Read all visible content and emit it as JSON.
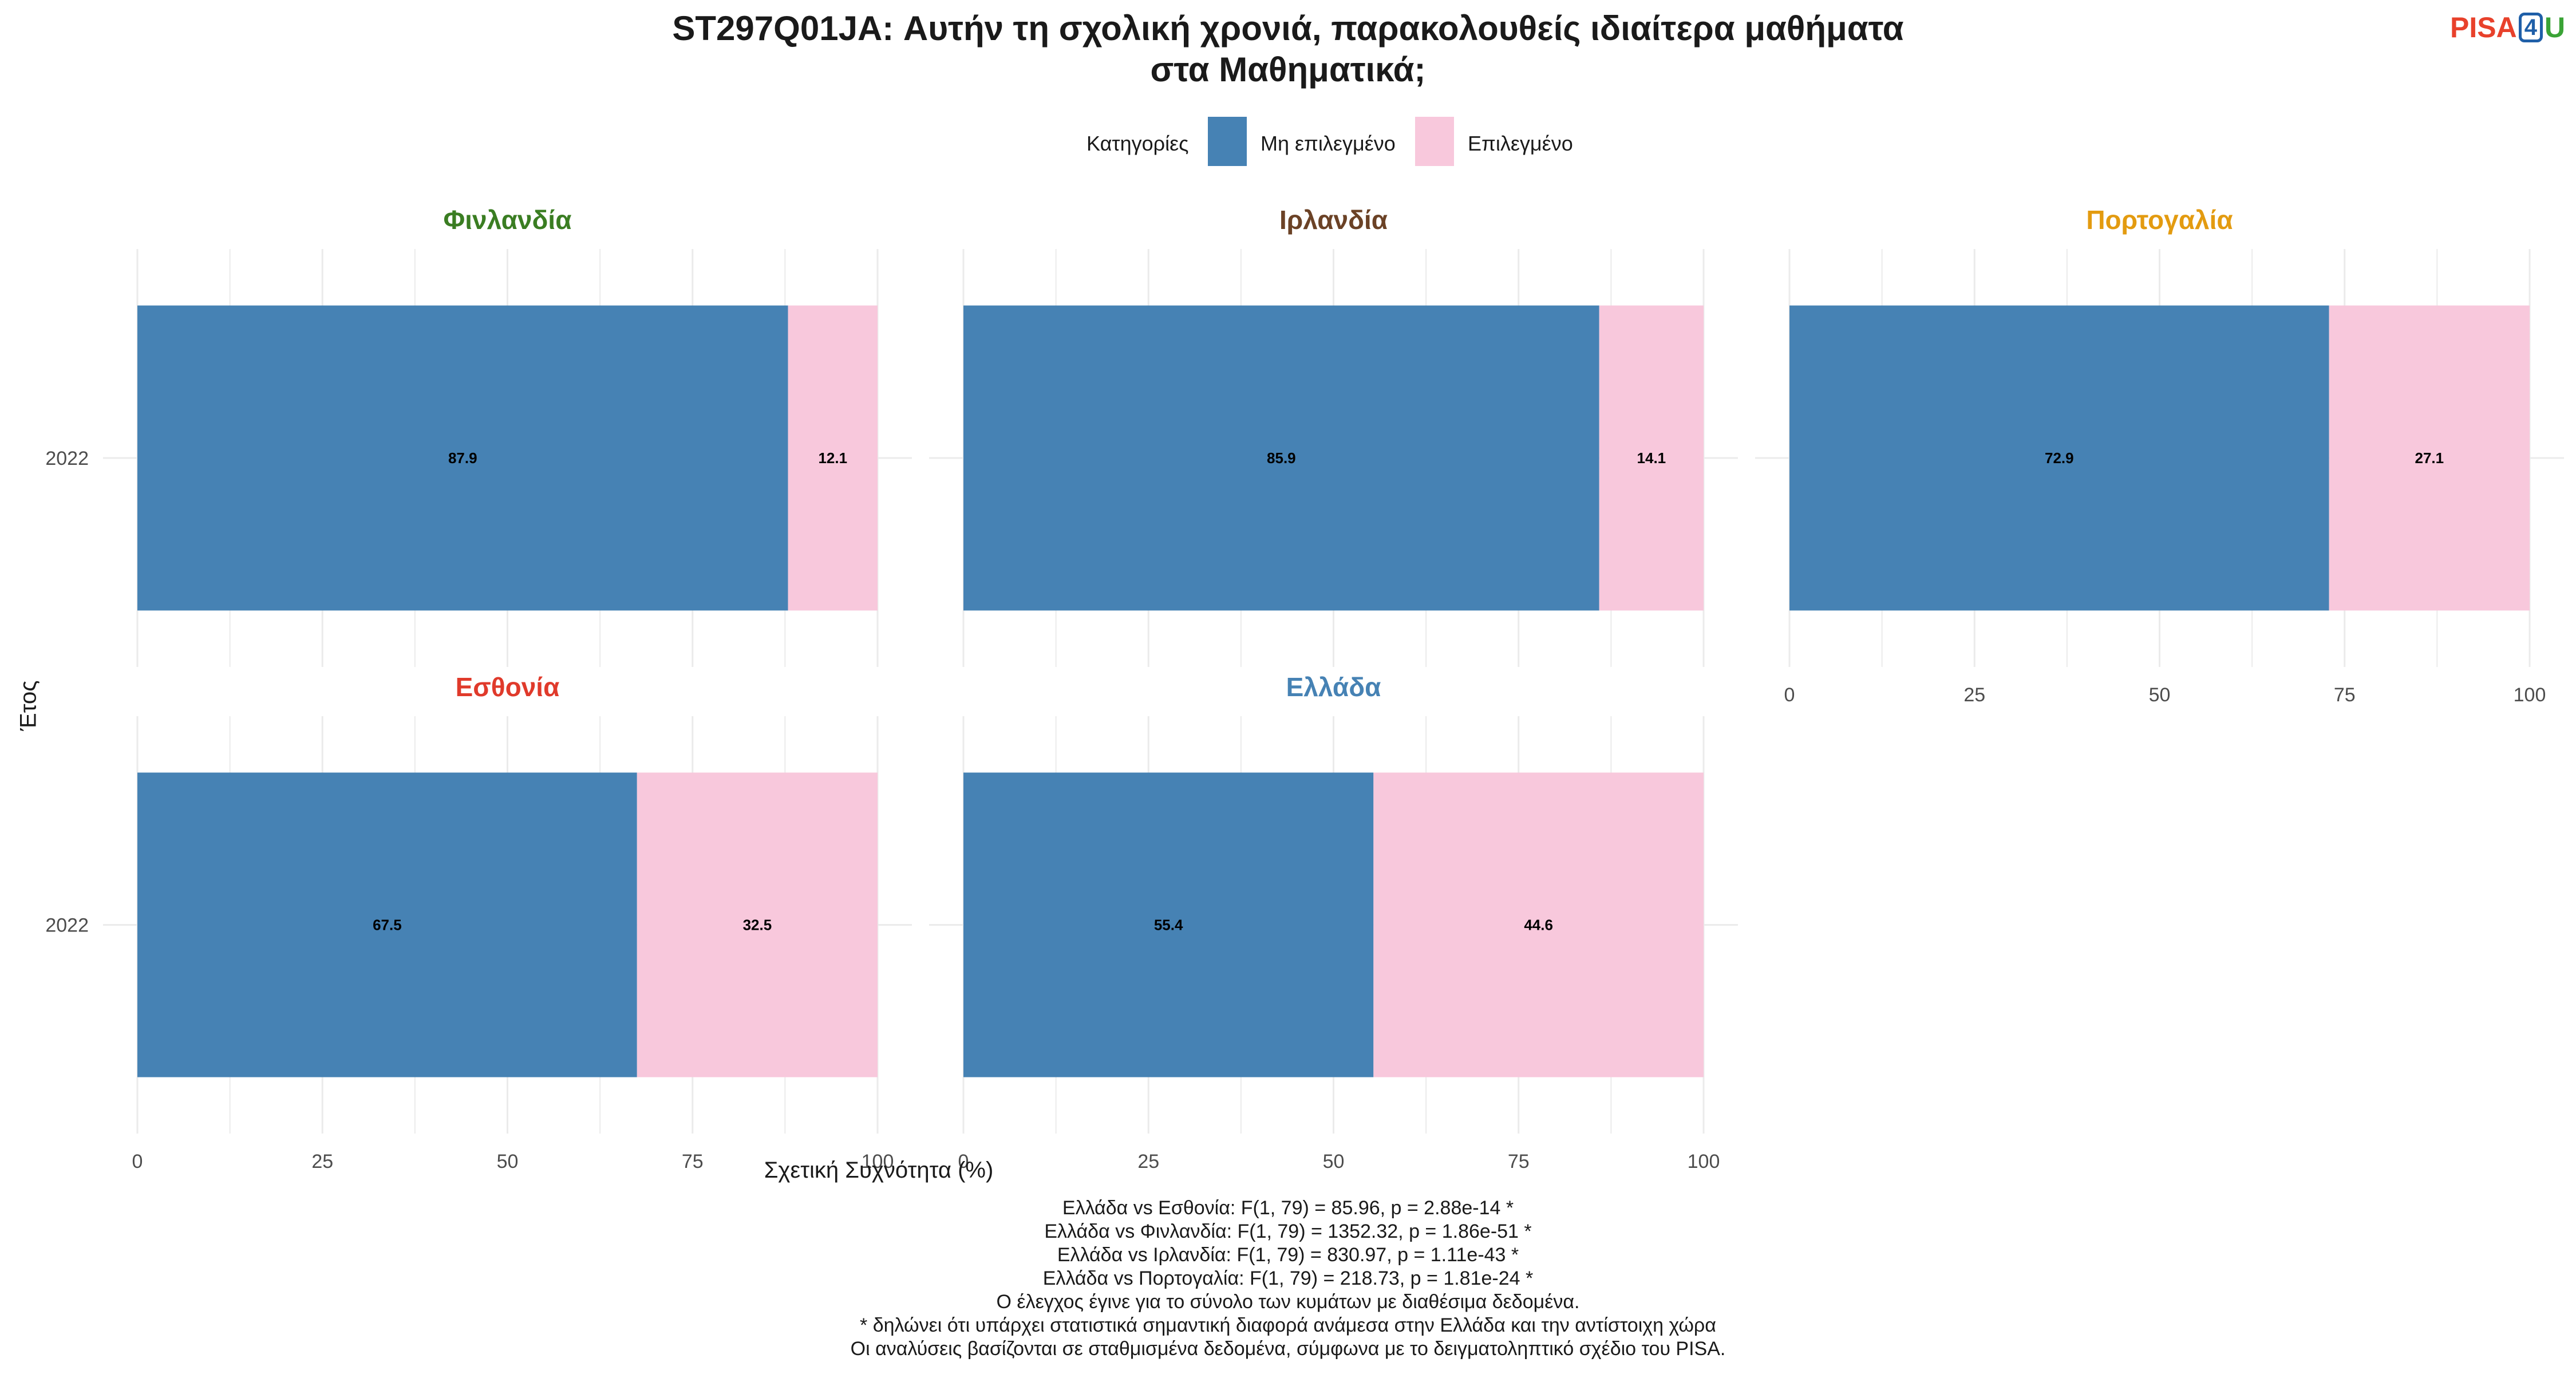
{
  "header": {
    "title": "ST297Q01JA: Αυτήν τη σχολική χρονιά, παρακολουθείς ιδιαίτερα μαθήματα\nστα Μαθηματικά;",
    "logo": {
      "part1": "PISA",
      "part2": "4",
      "part3": "U"
    }
  },
  "legend": {
    "title": "Κατηγορίες",
    "items": [
      {
        "label": "Μη επιλεγμένο",
        "color": "#4682B4"
      },
      {
        "label": "Επιλεγμένο",
        "color": "#F8C8DC"
      }
    ]
  },
  "axes": {
    "ylabel": "Έτος",
    "xlabel": "Σχετική Συχνότητα (%)"
  },
  "caption": [
    "Ελλάδα vs Εσθονία: F(1, 79) = 85.96, p = 2.88e-14 *",
    "Ελλάδα vs Φινλανδία: F(1, 79) = 1352.32, p = 1.86e-51 *",
    "Ελλάδα vs Ιρλανδία: F(1, 79) = 830.97, p = 1.11e-43 *",
    "Ελλάδα vs Πορτογαλία: F(1, 79) = 218.73, p = 1.81e-24 *",
    "Ο έλεγχος έγινε για το σύνολο των κυμάτων με διαθέσιμα δεδομένα.",
    "* δηλώνει ότι υπάρχει στατιστικά σημαντική διαφορά ανάμεσα στην Ελλάδα και την αντίστοιχη χώρα",
    "Οι αναλύσεις βασίζονται σε σταθμισμένα δεδομένα, σύμφωνα με το δειγματοληπτικό σχέδιο του PISA."
  ],
  "chart_data": {
    "type": "bar",
    "orientation": "horizontal",
    "stacked": true,
    "xlabel": "Σχετική Συχνότητα (%)",
    "ylabel": "Έτος",
    "xlim": [
      0,
      100
    ],
    "xticks": [
      0,
      25,
      50,
      75,
      100
    ],
    "grid": true,
    "legend_position": "top",
    "series_names": [
      "Μη επιλεγμένο",
      "Επιλεγμένο"
    ],
    "facets": [
      {
        "name": "Φινλανδία",
        "color": "#3A7D22",
        "categories": [
          "2022"
        ],
        "values": [
          [
            87.9,
            12.1
          ]
        ]
      },
      {
        "name": "Ιρλανδία",
        "color": "#6B4226",
        "categories": [
          "2022"
        ],
        "values": [
          [
            85.9,
            14.1
          ]
        ]
      },
      {
        "name": "Πορτογαλία",
        "color": "#E39B10",
        "categories": [
          "2022"
        ],
        "values": [
          [
            72.9,
            27.1
          ]
        ]
      },
      {
        "name": "Εσθονία",
        "color": "#E03A2B",
        "categories": [
          "2022"
        ],
        "values": [
          [
            67.5,
            32.5
          ]
        ]
      },
      {
        "name": "Ελλάδα",
        "color": "#4682B4",
        "categories": [
          "2022"
        ],
        "values": [
          [
            55.4,
            44.6
          ]
        ]
      }
    ]
  }
}
